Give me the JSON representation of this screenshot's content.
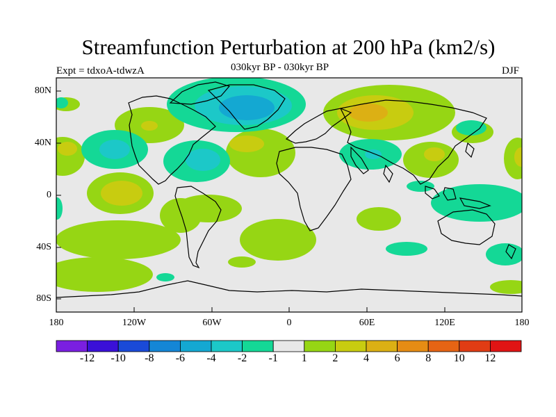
{
  "title": "Streamfunction Perturbation at 200 hPa (km2/s)",
  "expt_label": "Expt = tdxoA-tdwzA",
  "subtitle": "030kyr BP - 030kyr BP",
  "season": "DJF",
  "lat_ticks": [
    "80N",
    "40N",
    "0",
    "40S",
    "80S"
  ],
  "lon_ticks": [
    "180",
    "120W",
    "60W",
    "0",
    "60E",
    "120E",
    "180"
  ],
  "colorbar": {
    "labels": [
      "-12",
      "-10",
      "-8",
      "-6",
      "-4",
      "-2",
      "-1",
      "1",
      "2",
      "4",
      "6",
      "8",
      "10",
      "12"
    ],
    "colors": [
      "#7a1fe0",
      "#3a10d8",
      "#1a4ad8",
      "#1486d6",
      "#14a8d2",
      "#1cc8c8",
      "#14d896",
      "#e8e8e8",
      "#96d614",
      "#c8cc10",
      "#dcb014",
      "#e68c14",
      "#e66414",
      "#e03c14",
      "#e01414"
    ]
  },
  "colors": {
    "background_zero": "#e8e8e8",
    "coastline": "#000000"
  }
}
